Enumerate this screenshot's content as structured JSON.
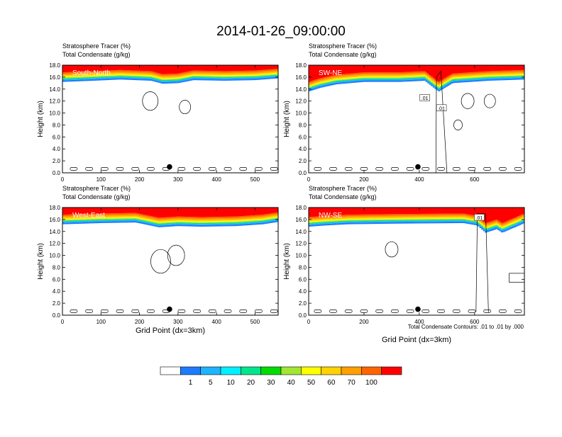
{
  "figure": {
    "title": "2014-01-26_09:00:00",
    "contour_note": "Total Condensate Contours: .01 to .01 by .000",
    "xlabel": "Grid Point (dx=3km)"
  },
  "colorbar": {
    "labels": [
      "1",
      "5",
      "10",
      "20",
      "30",
      "40",
      "50",
      "60",
      "70",
      "100"
    ],
    "colors": [
      "#ffffff",
      "#1e7bff",
      "#1eb4ff",
      "#00f0ff",
      "#00e68c",
      "#00dc00",
      "#a0e632",
      "#ffff00",
      "#ffd200",
      "#ffa000",
      "#ff6400",
      "#ff0000"
    ]
  },
  "chart_data": [
    {
      "type": "heatmap",
      "panel_label": "South-North",
      "header_line1": "Stratosphere Tracer   (%)",
      "header_line2": "Total Condensate   (g/kg)",
      "ylabel": "Height (km)",
      "xlabel": "",
      "xlim": [
        0,
        560
      ],
      "ylim": [
        0,
        18
      ],
      "xticks": [
        "0",
        "100",
        "200",
        "300",
        "400",
        "500"
      ],
      "xtick_values": [
        0,
        100,
        200,
        300,
        400,
        500
      ],
      "yticks": [
        "0.0",
        "2.0",
        "4.0",
        "6.0",
        "8.0",
        "10.0",
        "12.0",
        "14.0",
        "16.0",
        "18.0"
      ],
      "tracer_base_km": [
        [
          0,
          15.2
        ],
        [
          80,
          15.4
        ],
        [
          150,
          15.6
        ],
        [
          230,
          15.4
        ],
        [
          260,
          14.9
        ],
        [
          300,
          15.0
        ],
        [
          340,
          15.5
        ],
        [
          420,
          15.4
        ],
        [
          500,
          15.5
        ],
        [
          560,
          15.8
        ]
      ],
      "marker": {
        "x": 278,
        "y": 1.0
      },
      "annotations": []
    },
    {
      "type": "heatmap",
      "panel_label": "SW-NE",
      "header_line1": "Stratosphere Tracer   (%)",
      "header_line2": "Total Condensate   (g/kg)",
      "ylabel": "Height (km)",
      "xlabel": "",
      "xlim": [
        0,
        780
      ],
      "ylim": [
        0,
        18
      ],
      "xticks": [
        "0",
        "200",
        "400",
        "600"
      ],
      "xtick_values": [
        0,
        200,
        400,
        600
      ],
      "yticks": [
        "0.0",
        "2.0",
        "4.0",
        "6.0",
        "8.0",
        "10.0",
        "12.0",
        "14.0",
        "16.0",
        "18.0"
      ],
      "tracer_base_km": [
        [
          0,
          13.6
        ],
        [
          40,
          14.2
        ],
        [
          100,
          14.8
        ],
        [
          200,
          15.2
        ],
        [
          330,
          15.2
        ],
        [
          420,
          15.4
        ],
        [
          470,
          13.6
        ],
        [
          520,
          15.0
        ],
        [
          650,
          15.4
        ],
        [
          780,
          15.6
        ]
      ],
      "marker": {
        "x": 395,
        "y": 1.0
      },
      "annotations": [
        {
          "text": ".01",
          "x": 420,
          "y": 12.5
        },
        {
          "text": ".01",
          "x": 480,
          "y": 10.8
        }
      ]
    },
    {
      "type": "heatmap",
      "panel_label": "West-East",
      "header_line1": "Stratosphere Tracer   (%)",
      "header_line2": "Total Condensate   (g/kg)",
      "ylabel": "Height (km)",
      "xlabel": "Grid Point (dx=3km)",
      "xlim": [
        0,
        560
      ],
      "ylim": [
        0,
        18
      ],
      "xticks": [
        "0",
        "100",
        "200",
        "300",
        "400",
        "500"
      ],
      "xtick_values": [
        0,
        100,
        200,
        300,
        400,
        500
      ],
      "yticks": [
        "0.0",
        "2.0",
        "4.0",
        "6.0",
        "8.0",
        "10.0",
        "12.0",
        "14.0",
        "16.0",
        "18.0"
      ],
      "tracer_base_km": [
        [
          0,
          15.2
        ],
        [
          100,
          15.4
        ],
        [
          190,
          15.5
        ],
        [
          250,
          14.7
        ],
        [
          300,
          14.9
        ],
        [
          360,
          14.8
        ],
        [
          450,
          14.9
        ],
        [
          520,
          15.2
        ],
        [
          560,
          15.6
        ]
      ],
      "marker": {
        "x": 278,
        "y": 1.0
      },
      "annotations": []
    },
    {
      "type": "heatmap",
      "panel_label": "NW-SE",
      "header_line1": "Stratosphere Tracer   (%)",
      "header_line2": "Total Condensate   (g/kg)",
      "ylabel": "Height (km)",
      "xlabel": "Grid Point (dx=3km)",
      "xlim": [
        0,
        780
      ],
      "ylim": [
        0,
        18
      ],
      "xticks": [
        "0",
        "200",
        "400",
        "600"
      ],
      "xtick_values": [
        0,
        200,
        400,
        600
      ],
      "yticks": [
        "0.0",
        "2.0",
        "4.0",
        "6.0",
        "8.0",
        "10.0",
        "12.0",
        "14.0",
        "16.0",
        "18.0"
      ],
      "tracer_base_km": [
        [
          0,
          14.8
        ],
        [
          60,
          15.0
        ],
        [
          140,
          15.2
        ],
        [
          300,
          15.3
        ],
        [
          560,
          15.4
        ],
        [
          610,
          15.0
        ],
        [
          640,
          13.8
        ],
        [
          680,
          14.4
        ],
        [
          700,
          13.8
        ],
        [
          780,
          15.4
        ]
      ],
      "marker": {
        "x": 395,
        "y": 1.0
      },
      "annotations": [
        {
          "text": ".01",
          "x": 617,
          "y": 16.3
        }
      ]
    }
  ]
}
